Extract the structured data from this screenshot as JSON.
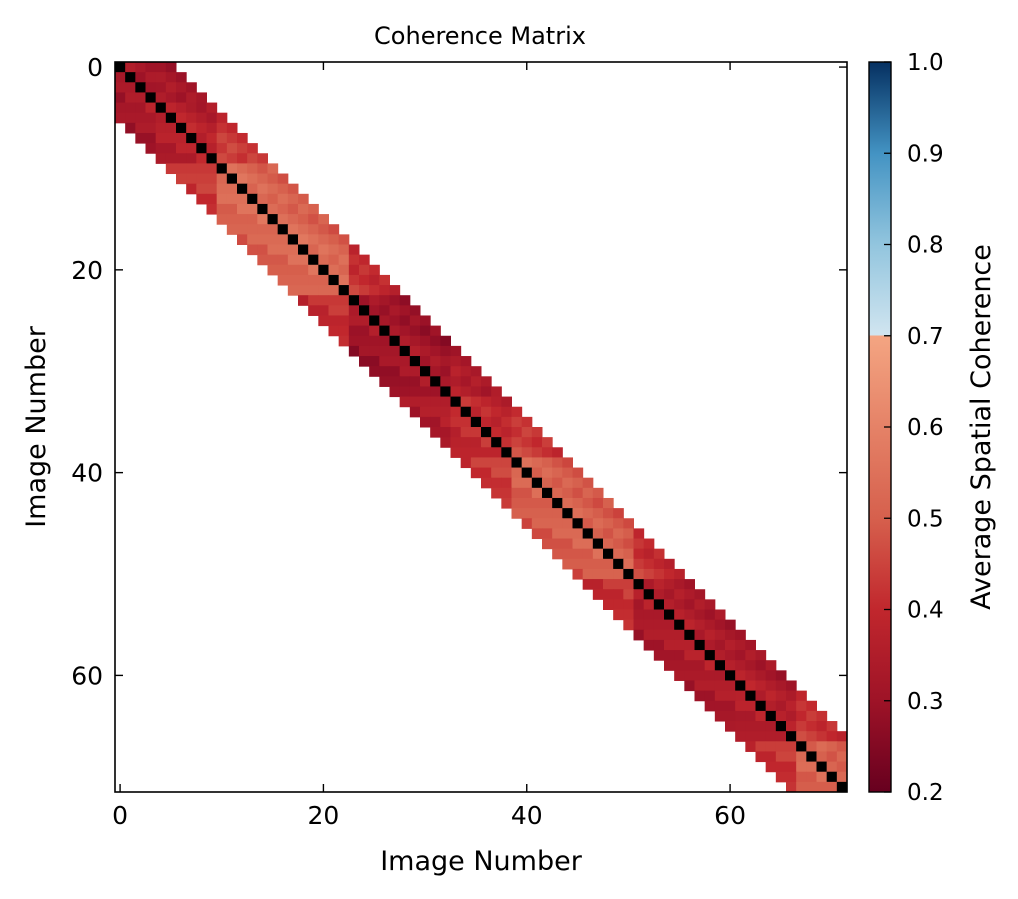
{
  "chart_data": {
    "type": "heatmap",
    "title": "Coherence Matrix",
    "xlabel": "Image Number",
    "ylabel": "Image Number",
    "x_ticks": [
      "0",
      "20",
      "40",
      "60"
    ],
    "y_ticks": [
      "0",
      "20",
      "40",
      "60"
    ],
    "n_images": 72,
    "band_half_width": 5,
    "diagonal_value": 1.0,
    "diagonal_color": "#000000",
    "segments": [
      {
        "start": 0,
        "end": 3,
        "offdiag_mean": 0.33
      },
      {
        "start": 4,
        "end": 9,
        "offdiag_mean": 0.38
      },
      {
        "start": 10,
        "end": 22,
        "offdiag_mean": 0.54
      },
      {
        "start": 23,
        "end": 32,
        "offdiag_mean": 0.33
      },
      {
        "start": 33,
        "end": 38,
        "offdiag_mean": 0.41
      },
      {
        "start": 39,
        "end": 50,
        "offdiag_mean": 0.52
      },
      {
        "start": 51,
        "end": 60,
        "offdiag_mean": 0.36
      },
      {
        "start": 61,
        "end": 66,
        "offdiag_mean": 0.37
      },
      {
        "start": 67,
        "end": 71,
        "offdiag_mean": 0.52
      }
    ],
    "colorbar": {
      "label": "Average Spatial Coherence",
      "min": 0.2,
      "max": 1.0,
      "ticks": [
        "1.0",
        "0.9",
        "0.8",
        "0.7",
        "0.6",
        "0.5",
        "0.4",
        "0.3",
        "0.2"
      ],
      "tick_values": [
        1.0,
        0.9,
        0.8,
        0.7,
        0.6,
        0.5,
        0.4,
        0.3,
        0.2
      ],
      "colormap_stops": [
        {
          "v": 0.2,
          "color": "#67001f"
        },
        {
          "v": 0.3,
          "color": "#9e1327"
        },
        {
          "v": 0.4,
          "color": "#c1272d"
        },
        {
          "v": 0.5,
          "color": "#d6604d"
        },
        {
          "v": 0.6,
          "color": "#e58267"
        },
        {
          "v": 0.7,
          "color": "#f4a582"
        },
        {
          "v": 0.7001,
          "color": "#d1e5f0"
        },
        {
          "v": 0.8,
          "color": "#92c5de"
        },
        {
          "v": 0.9,
          "color": "#4393c3"
        },
        {
          "v": 1.0,
          "color": "#053061"
        }
      ]
    }
  }
}
